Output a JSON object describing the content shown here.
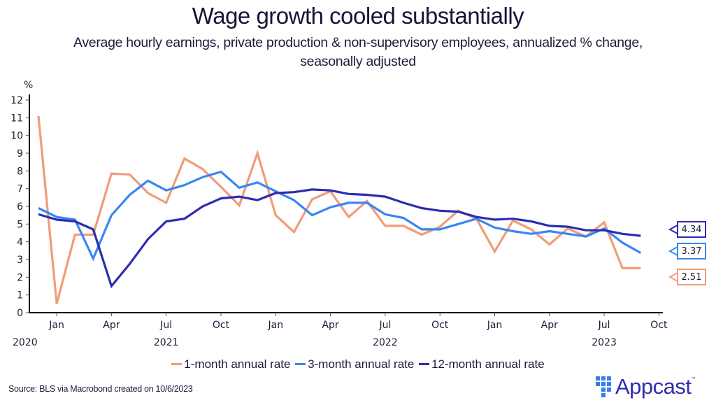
{
  "chart_data": {
    "type": "line",
    "title": "Wage growth cooled substantially",
    "subtitle": "Average hourly earnings, private production & non-supervisory employees, annualized % change, seasonally adjusted",
    "ylabel": "%",
    "xlabel": "",
    "ylim": [
      0,
      12
    ],
    "yticks": [
      0,
      1,
      2,
      3,
      4,
      5,
      6,
      7,
      8,
      9,
      10,
      11,
      12
    ],
    "grid": false,
    "legend_position": "bottom",
    "x": [
      "2020-12",
      "2021-01",
      "2021-02",
      "2021-03",
      "2021-04",
      "2021-05",
      "2021-06",
      "2021-07",
      "2021-08",
      "2021-09",
      "2021-10",
      "2021-11",
      "2021-12",
      "2022-01",
      "2022-02",
      "2022-03",
      "2022-04",
      "2022-05",
      "2022-06",
      "2022-07",
      "2022-08",
      "2022-09",
      "2022-10",
      "2022-11",
      "2022-12",
      "2023-01",
      "2023-02",
      "2023-03",
      "2023-04",
      "2023-05",
      "2023-06",
      "2023-07",
      "2023-08",
      "2023-09"
    ],
    "xticks": [
      {
        "label": "Jan",
        "month_index": 1
      },
      {
        "label": "Apr",
        "month_index": 4
      },
      {
        "label": "Jul",
        "month_index": 7
      },
      {
        "label": "Oct",
        "month_index": 10
      },
      {
        "label": "Jan",
        "month_index": 13
      },
      {
        "label": "Apr",
        "month_index": 16
      },
      {
        "label": "Jul",
        "month_index": 19
      },
      {
        "label": "Oct",
        "month_index": 22
      },
      {
        "label": "Jan",
        "month_index": 25
      },
      {
        "label": "Apr",
        "month_index": 28
      },
      {
        "label": "Jul",
        "month_index": 31
      },
      {
        "label": "Oct",
        "month_index": 34
      }
    ],
    "year_labels": [
      {
        "label": "2020",
        "month_index": 0
      },
      {
        "label": "2021",
        "month_index": 7
      },
      {
        "label": "2022",
        "month_index": 19
      },
      {
        "label": "2023",
        "month_index": 31
      }
    ],
    "series": [
      {
        "name": "1-month annual rate",
        "color": "#f19c79",
        "values": [
          11.1,
          0.5,
          4.4,
          4.4,
          7.85,
          7.8,
          6.75,
          6.2,
          8.7,
          8.1,
          7.1,
          6.05,
          9.0,
          5.5,
          4.55,
          6.4,
          6.85,
          5.4,
          6.3,
          4.9,
          4.9,
          4.4,
          4.85,
          5.75,
          5.3,
          3.45,
          5.2,
          4.7,
          3.85,
          4.75,
          4.3,
          5.1,
          2.51,
          2.51
        ],
        "end_label": "2.51"
      },
      {
        "name": "3-month annual rate",
        "color": "#3a86f2",
        "values": [
          5.9,
          5.4,
          5.25,
          3.05,
          5.5,
          6.65,
          7.45,
          6.9,
          7.2,
          7.65,
          7.95,
          7.05,
          7.35,
          6.85,
          6.35,
          5.5,
          5.95,
          6.2,
          6.2,
          5.55,
          5.35,
          4.7,
          4.7,
          5.0,
          5.3,
          4.8,
          4.6,
          4.45,
          4.6,
          4.45,
          4.3,
          4.75,
          3.95,
          3.37
        ],
        "end_label": "3.37"
      },
      {
        "name": "12-month annual rate",
        "color": "#2d2db0",
        "values": [
          5.55,
          5.25,
          5.15,
          4.7,
          1.5,
          2.75,
          4.15,
          5.15,
          5.3,
          6.0,
          6.45,
          6.55,
          6.35,
          6.75,
          6.8,
          6.95,
          6.9,
          6.7,
          6.65,
          6.55,
          6.2,
          5.9,
          5.75,
          5.7,
          5.4,
          5.25,
          5.3,
          5.15,
          4.9,
          4.85,
          4.65,
          4.65,
          4.45,
          4.34
        ],
        "end_label": "4.34"
      }
    ]
  },
  "legend": {
    "items": [
      {
        "label": "1-month annual rate",
        "color": "#f19c79"
      },
      {
        "label": "3-month annual rate",
        "color": "#3a86f2"
      },
      {
        "label": "12-month annual rate",
        "color": "#2d2db0"
      }
    ]
  },
  "footer": {
    "source": "Source: BLS via Macrobond created on 10/6/2023",
    "brand": "Appcast",
    "brand_tm": "™"
  }
}
